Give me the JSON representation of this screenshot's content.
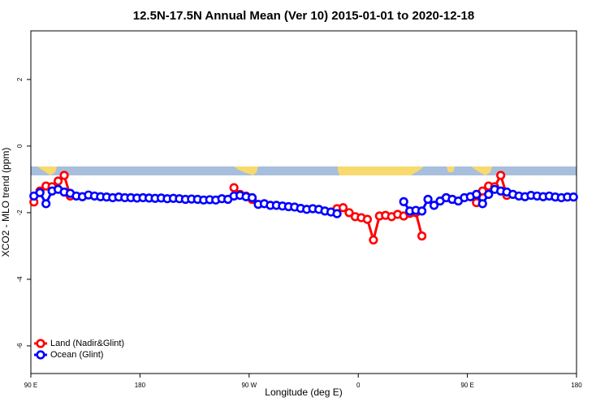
{
  "chart_data": {
    "type": "line",
    "title": "12.5N-17.5N Annual Mean (Ver 10)   2015-01-01 to 2020-12-18",
    "x_label": "Longitude (deg E)",
    "y_label": "XCO2 - MLO trend (ppm)",
    "xlim": [
      90,
      540
    ],
    "ylim": [
      -6.83,
      3.46
    ],
    "xticks": [
      {
        "value": 90,
        "label": "90 E"
      },
      180,
      {
        "value": 270,
        "label": "90 W"
      },
      {
        "value": 360,
        "label": "0"
      },
      {
        "value": 450,
        "label": "90 E"
      },
      {
        "value": 540,
        "label": "180"
      }
    ],
    "yticks": [
      -6,
      -4,
      -2,
      0,
      2
    ],
    "legend": "bottom-left",
    "x": [
      92.5,
      97.5,
      102.5,
      107.5,
      112.5,
      117.5,
      122.5,
      127.5,
      132.5,
      137.5,
      142.5,
      147.5,
      152.5,
      157.5,
      162.5,
      167.5,
      172.5,
      177.5,
      182.5,
      187.5,
      192.5,
      197.5,
      202.5,
      207.5,
      212.5,
      217.5,
      222.5,
      227.5,
      232.5,
      237.5,
      242.5,
      247.5,
      252.5,
      257.5,
      262.5,
      267.5,
      272.5,
      277.5,
      282.5,
      287.5,
      292.5,
      297.5,
      302.5,
      307.5,
      312.5,
      317.5,
      322.5,
      327.5,
      332.5,
      337.5,
      342.5,
      347.5,
      352.5,
      357.5,
      362.5,
      367.5,
      372.5,
      377.5,
      382.5,
      387.5,
      392.5,
      397.5,
      402.5,
      407.5,
      412.5,
      417.5,
      422.5,
      427.5,
      432.5,
      437.5,
      442.5,
      447.5,
      452.5,
      457.5,
      462.5,
      467.5,
      472.5,
      477.5,
      482.5,
      487.5,
      492.5,
      497.5,
      502.5,
      507.5,
      512.5,
      517.5,
      522.5,
      527.5,
      532.5,
      537.5
    ],
    "series": [
      {
        "name": "Land (Nadir&Glint)",
        "color": "#ff0000",
        "values": [
          -1.68,
          -1.35,
          -1.2,
          -1.22,
          -1.05,
          -0.88,
          -1.5,
          null,
          null,
          null,
          null,
          null,
          null,
          null,
          null,
          null,
          null,
          null,
          null,
          null,
          null,
          null,
          null,
          null,
          null,
          null,
          null,
          null,
          null,
          null,
          null,
          null,
          null,
          -1.25,
          -1.45,
          -1.5,
          -1.6,
          null,
          null,
          null,
          null,
          null,
          null,
          null,
          null,
          null,
          null,
          null,
          null,
          null,
          -1.88,
          -1.85,
          -2.0,
          -2.12,
          -2.15,
          -2.2,
          -2.82,
          -2.1,
          -2.08,
          -2.12,
          -2.05,
          -2.1,
          -2.02,
          -2.0,
          -2.7,
          null,
          null,
          null,
          -1.55,
          -1.6,
          null,
          null,
          null,
          -1.7,
          -1.35,
          -1.2,
          -1.22,
          -0.88,
          -1.48,
          null,
          null,
          null,
          null,
          null,
          null,
          null,
          null,
          null,
          null,
          null
        ]
      },
      {
        "name": "Ocean (Glint)",
        "color": "#0000ff",
        "values": [
          -1.5,
          -1.4,
          -1.73,
          -1.35,
          -1.3,
          -1.38,
          -1.42,
          -1.5,
          -1.52,
          -1.47,
          -1.5,
          -1.52,
          -1.53,
          -1.55,
          -1.53,
          -1.55,
          -1.55,
          -1.56,
          -1.55,
          -1.56,
          -1.57,
          -1.56,
          -1.58,
          -1.57,
          -1.58,
          -1.6,
          -1.59,
          -1.6,
          -1.62,
          -1.61,
          -1.62,
          -1.58,
          -1.6,
          -1.5,
          -1.48,
          -1.52,
          -1.55,
          -1.75,
          -1.73,
          -1.78,
          -1.78,
          -1.8,
          -1.82,
          -1.83,
          -1.87,
          -1.9,
          -1.88,
          -1.9,
          -1.95,
          -1.98,
          -2.03,
          null,
          null,
          null,
          null,
          null,
          null,
          null,
          null,
          null,
          null,
          -1.67,
          -1.95,
          -1.93,
          -1.95,
          -1.6,
          -1.78,
          -1.65,
          -1.55,
          -1.6,
          -1.65,
          -1.55,
          -1.52,
          -1.45,
          -1.73,
          -1.45,
          -1.3,
          -1.35,
          -1.38,
          -1.45,
          -1.5,
          -1.52,
          -1.48,
          -1.5,
          -1.52,
          -1.5,
          -1.53,
          -1.55,
          -1.53,
          -1.53
        ]
      }
    ]
  }
}
